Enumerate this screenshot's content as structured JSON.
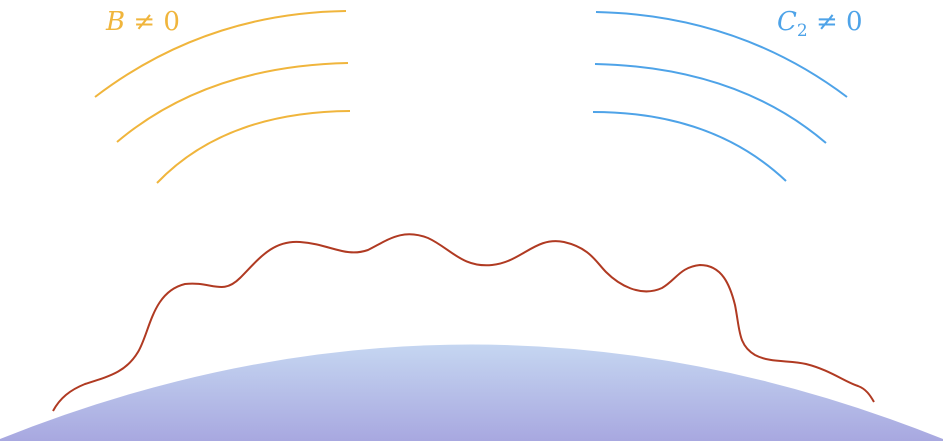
{
  "labels": {
    "left": {
      "symbol": "B",
      "relation": " ≠ 0"
    },
    "right": {
      "symbol": "C",
      "subscript": "2",
      "relation": " ≠ 0"
    }
  },
  "colors": {
    "left_field": "#f0b53c",
    "right_field": "#4ea3e8",
    "boundary_curve": "#b03a22",
    "surface_top": "#c5d6f1",
    "surface_bottom": "#a8a8e0"
  },
  "icons": {
    "left_field": "field-arcs-icon",
    "right_field": "field-arcs-icon"
  }
}
